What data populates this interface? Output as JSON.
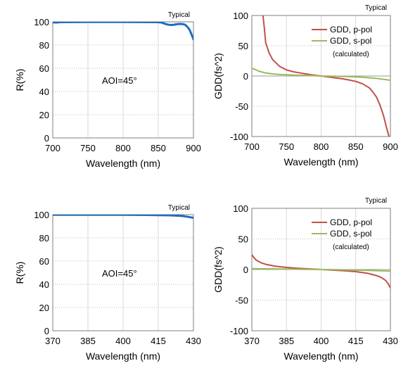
{
  "chart_data": [
    {
      "id": "refl-ir",
      "type": "line",
      "note": "Typical",
      "xlabel": "Wavelength (nm)",
      "ylabel": "R(%)",
      "xlim": [
        700,
        900
      ],
      "ylim": [
        0,
        100
      ],
      "xticks": [
        700,
        750,
        800,
        850,
        900
      ],
      "yticks": [
        0,
        20,
        40,
        60,
        80,
        100
      ],
      "grid": true,
      "annotation": "AOI=45°",
      "series": [
        {
          "color": "#1f6dbf",
          "x": [
            700,
            705,
            710,
            750,
            800,
            850,
            855,
            860,
            865,
            870,
            875,
            880,
            885,
            888,
            890,
            893,
            895,
            897,
            899,
            900
          ],
          "y": [
            99.6,
            99.4,
            99.7,
            99.8,
            99.8,
            99.7,
            99.3,
            98.2,
            97.4,
            97.3,
            97.8,
            98.2,
            98.0,
            97.5,
            96.5,
            94.5,
            92.5,
            89.5,
            86.5,
            85
          ]
        }
      ]
    },
    {
      "id": "gdd-ir",
      "type": "line",
      "note": "Typical",
      "xlabel": "Wavelength (nm)",
      "ylabel": "GDD(fs^2)",
      "xlim": [
        700,
        900
      ],
      "ylim": [
        -100,
        100
      ],
      "xticks": [
        700,
        750,
        800,
        850,
        900
      ],
      "yticks": [
        -100,
        -50,
        0,
        50,
        100
      ],
      "grid": true,
      "legend_position": "top-right",
      "legend_note": "(calculated)",
      "series": [
        {
          "name": "GDD, p-pol",
          "color": "#c0504d",
          "x": [
            716,
            718,
            720,
            725,
            730,
            740,
            750,
            760,
            770,
            780,
            790,
            800,
            810,
            820,
            830,
            840,
            850,
            860,
            870,
            875,
            880,
            885,
            890,
            895,
            898
          ],
          "y": [
            100,
            80,
            55,
            38,
            27,
            16,
            10,
            7,
            5,
            3,
            1.5,
            0,
            -1.5,
            -3,
            -4.5,
            -6.5,
            -9,
            -13,
            -20,
            -27,
            -35,
            -48,
            -65,
            -88,
            -100
          ]
        },
        {
          "name": "GDD, s-pol",
          "color": "#9bbb59",
          "x": [
            700,
            710,
            720,
            730,
            740,
            750,
            760,
            780,
            800,
            820,
            840,
            860,
            870,
            880,
            890,
            900
          ],
          "y": [
            13,
            8,
            5,
            3.5,
            2.5,
            2,
            1.5,
            1,
            0,
            -0.5,
            -1,
            -2,
            -3,
            -4,
            -5.5,
            -7
          ]
        }
      ]
    },
    {
      "id": "refl-uv",
      "type": "line",
      "note": "Typical",
      "xlabel": "Wavelength (nm)",
      "ylabel": "R(%)",
      "xlim": [
        370,
        430
      ],
      "ylim": [
        0,
        100
      ],
      "xticks": [
        370,
        385,
        400,
        415,
        430
      ],
      "yticks": [
        0,
        20,
        40,
        60,
        80,
        100
      ],
      "grid": true,
      "annotation": "AOI=45°",
      "series": [
        {
          "color": "#1f6dbf",
          "x": [
            370,
            380,
            390,
            400,
            410,
            415,
            420,
            424,
            426,
            428,
            430
          ],
          "y": [
            99.8,
            99.9,
            99.9,
            99.8,
            99.7,
            99.6,
            99.4,
            99.0,
            98.6,
            98.0,
            97.3
          ]
        }
      ]
    },
    {
      "id": "gdd-uv",
      "type": "line",
      "note": "Typical",
      "xlabel": "Wavelength (nm)",
      "ylabel": "GDD(fs^2)",
      "xlim": [
        370,
        430
      ],
      "ylim": [
        -100,
        100
      ],
      "xticks": [
        370,
        385,
        400,
        415,
        430
      ],
      "yticks": [
        -100,
        -50,
        0,
        50,
        100
      ],
      "grid": true,
      "legend_position": "top-right",
      "legend_note": "(calculated)",
      "series": [
        {
          "name": "GDD, p-pol",
          "color": "#c0504d",
          "x": [
            370,
            371,
            372,
            374,
            376,
            378,
            380,
            385,
            390,
            395,
            400,
            405,
            410,
            415,
            418,
            420,
            422,
            424,
            426,
            428,
            429,
            430
          ],
          "y": [
            24,
            19,
            15,
            11,
            8.5,
            7,
            5.5,
            3.5,
            2,
            1,
            0,
            -1,
            -2,
            -3.5,
            -5,
            -6,
            -8,
            -10,
            -13,
            -18,
            -23,
            -30
          ]
        },
        {
          "name": "GDD, s-pol",
          "color": "#9bbb59",
          "x": [
            370,
            380,
            390,
            400,
            410,
            420,
            430
          ],
          "y": [
            1.5,
            1,
            0.5,
            0,
            -0.5,
            -1.5,
            -2.5
          ]
        }
      ]
    }
  ]
}
